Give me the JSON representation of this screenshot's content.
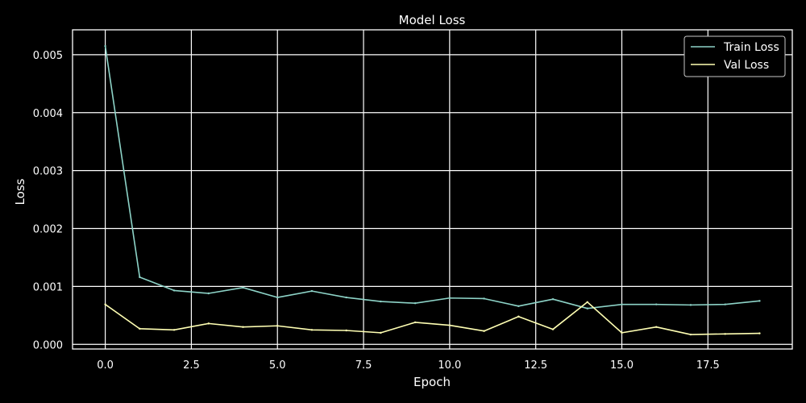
{
  "chart_data": {
    "type": "line",
    "title": "Model Loss",
    "xlabel": "Epoch",
    "ylabel": "Loss",
    "xlim": [
      -0.95,
      19.95
    ],
    "ylim": [
      -8e-05,
      0.00543
    ],
    "x_ticks": [
      0.0,
      2.5,
      5.0,
      7.5,
      10.0,
      12.5,
      15.0,
      17.5
    ],
    "x_tick_labels": [
      "0.0",
      "2.5",
      "5.0",
      "7.5",
      "10.0",
      "12.5",
      "15.0",
      "17.5"
    ],
    "y_ticks": [
      0.0,
      0.001,
      0.002,
      0.003,
      0.004,
      0.005
    ],
    "y_tick_labels": [
      "0.000",
      "0.001",
      "0.002",
      "0.003",
      "0.004",
      "0.005"
    ],
    "grid": true,
    "legend_position": "top-right",
    "x": [
      0,
      1,
      2,
      3,
      4,
      5,
      6,
      7,
      8,
      9,
      10,
      11,
      12,
      13,
      14,
      15,
      16,
      17,
      18,
      19
    ],
    "series": [
      {
        "name": "Train Loss",
        "color": "#8dd3c7",
        "values": [
          0.00515,
          0.00116,
          0.00093,
          0.00088,
          0.00098,
          0.00081,
          0.00092,
          0.00081,
          0.00074,
          0.00071,
          0.0008,
          0.00079,
          0.00066,
          0.00078,
          0.00062,
          0.00069,
          0.00069,
          0.00068,
          0.00069,
          0.00075
        ]
      },
      {
        "name": "Val Loss",
        "color": "#ffffb3",
        "values": [
          0.00069,
          0.00027,
          0.00025,
          0.00036,
          0.0003,
          0.00032,
          0.00025,
          0.00024,
          0.0002,
          0.00038,
          0.00033,
          0.00023,
          0.00048,
          0.00026,
          0.00073,
          0.0002,
          0.0003,
          0.00017,
          0.00018,
          0.00019
        ]
      }
    ]
  },
  "colors": {
    "background": "#000000",
    "grid": "#ffffff",
    "text": "#ffffff",
    "legend_border": "#c8c8c8"
  }
}
